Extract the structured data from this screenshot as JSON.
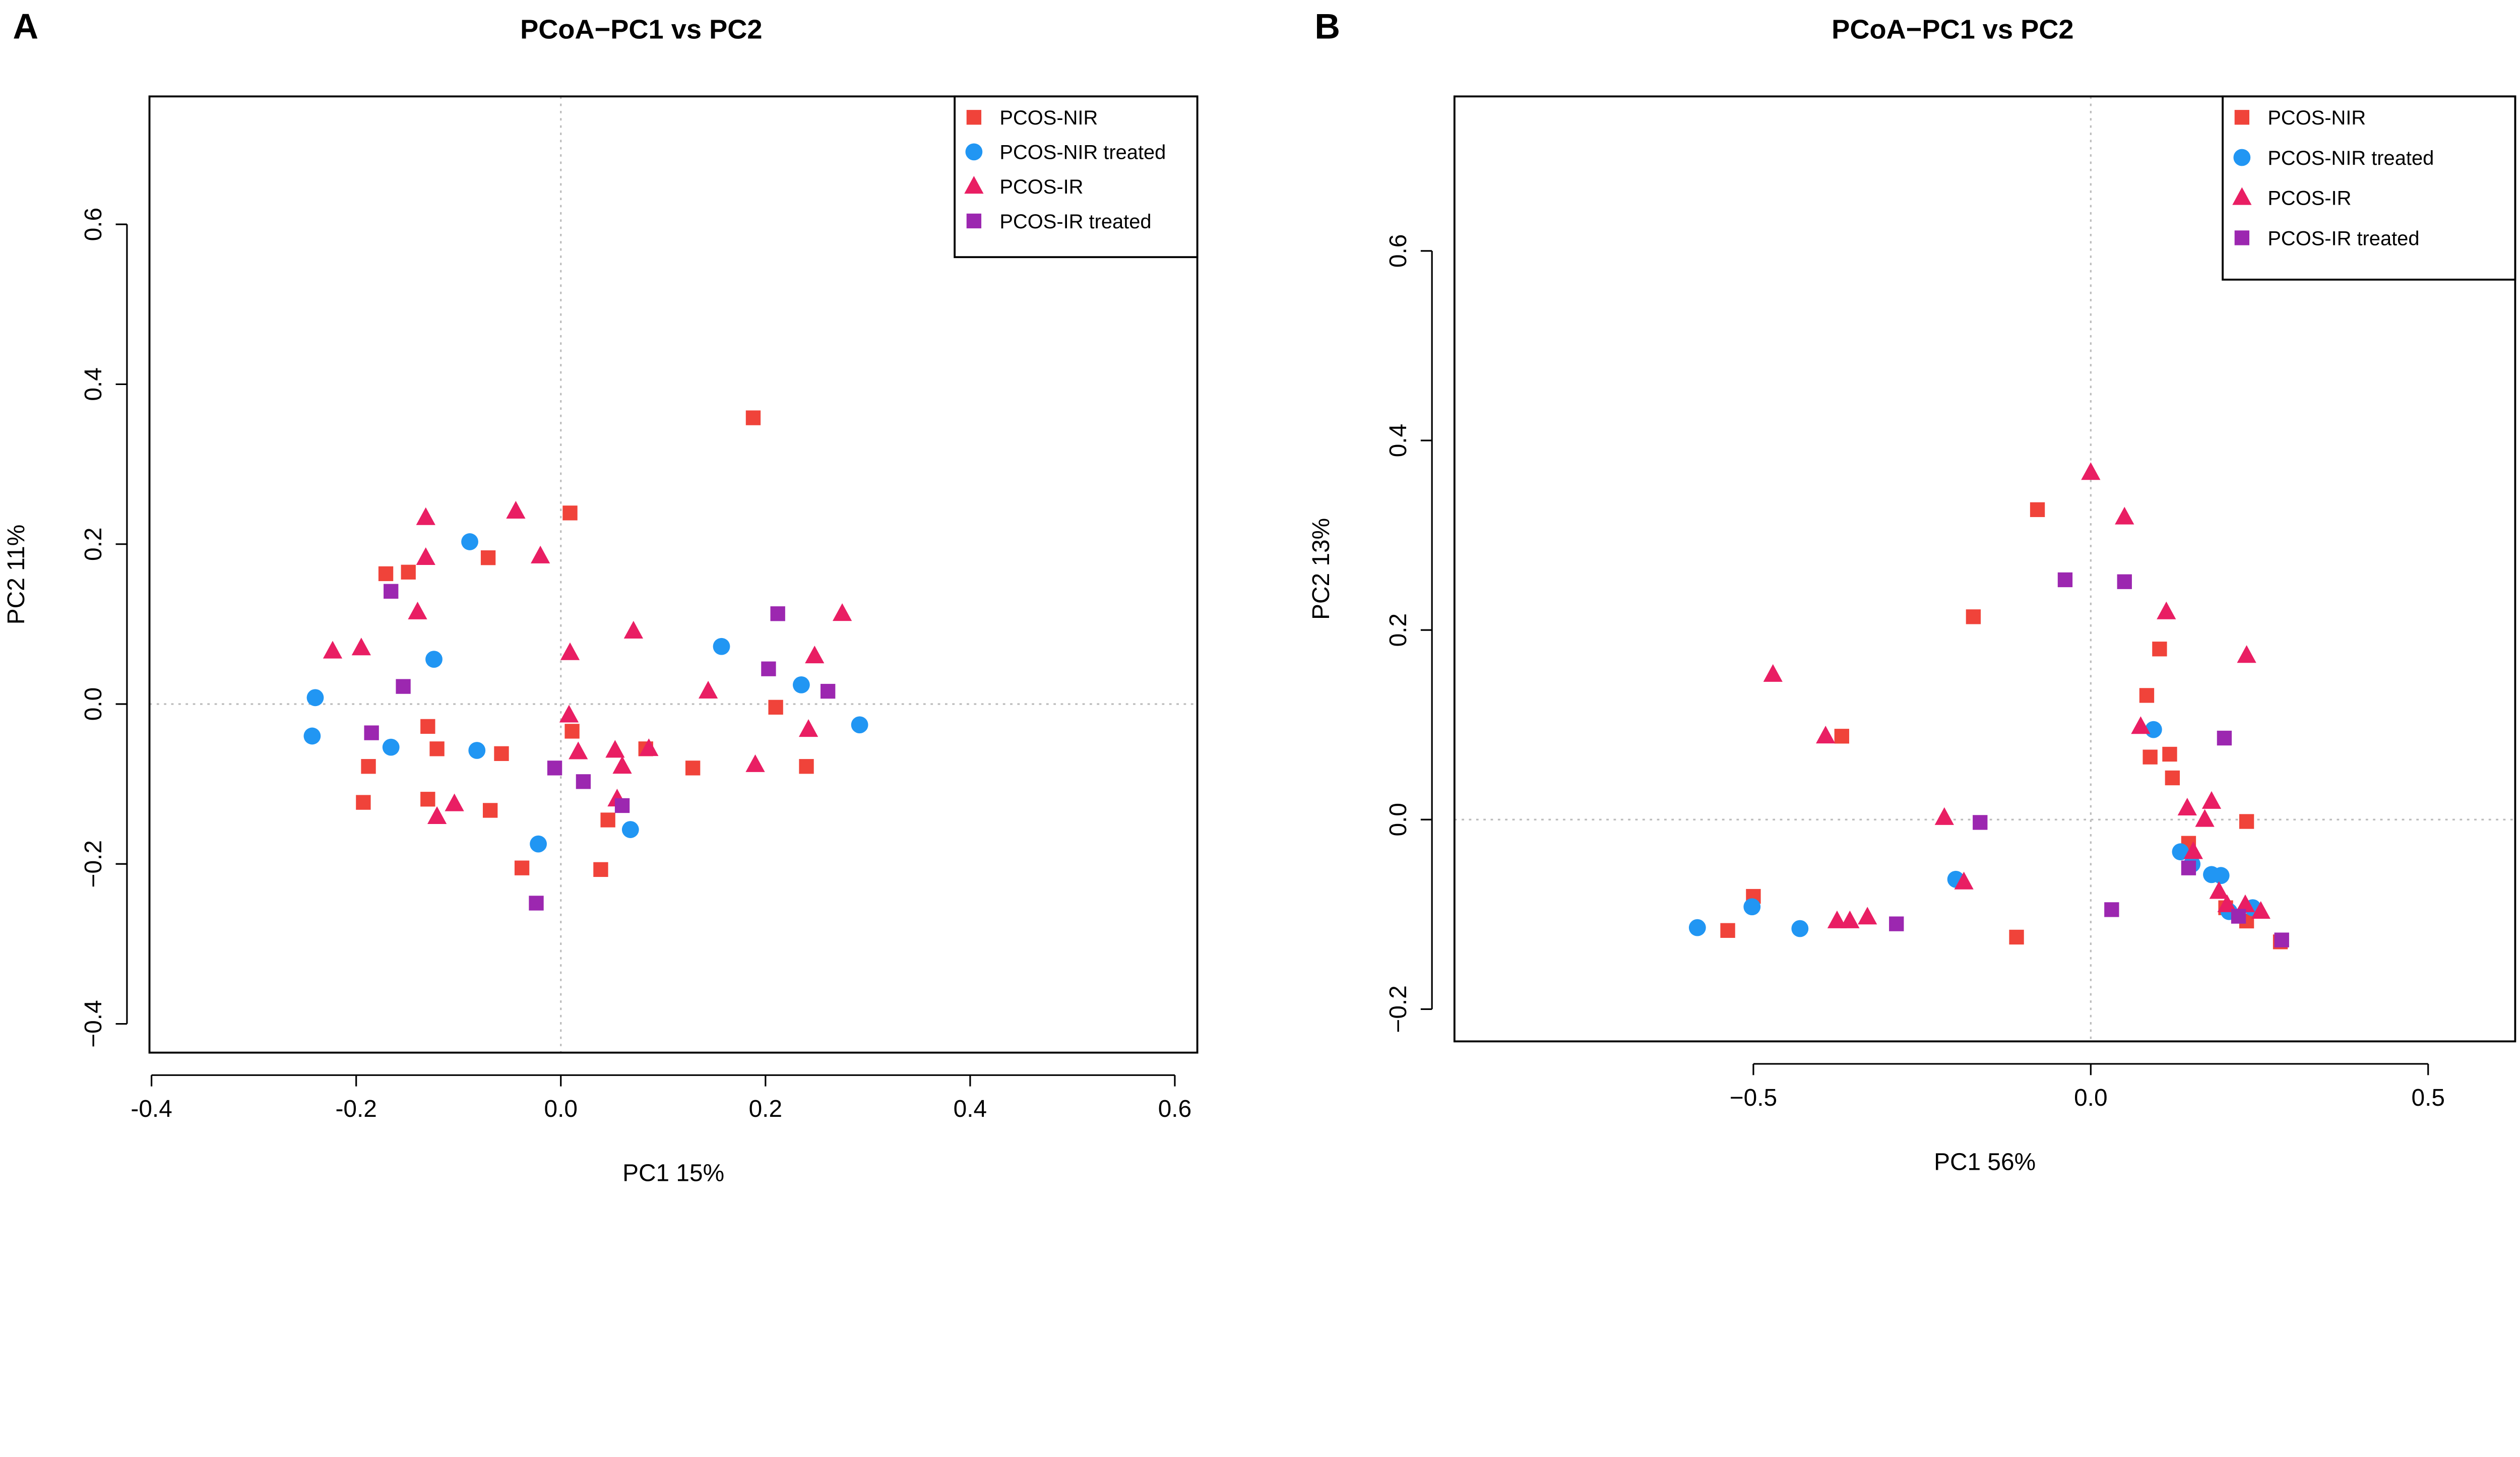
{
  "colors": {
    "PCOS-NIR": "#F0433A",
    "PCOS-NIR treated": "#2196F3",
    "PCOS-IR": "#E91E63",
    "PCOS-IR treated": "#9C27B0"
  },
  "chart_data": [
    {
      "panel": "A",
      "type": "scatter",
      "title": "PCoA−PC1 vs PC2",
      "xlabel": "PC1 15%",
      "ylabel": "PC2 11%",
      "xlim": [
        -0.402,
        0.622
      ],
      "ylim": [
        -0.436,
        0.76
      ],
      "xticks": [
        -0.4,
        -0.2,
        0.0,
        0.2,
        0.4,
        0.6
      ],
      "xtick_labels": [
        "-0.4",
        "-0.2",
        "0.0",
        "0.2",
        "0.4",
        "0.6"
      ],
      "yticks": [
        -0.4,
        -0.2,
        0.0,
        0.2,
        0.4,
        0.6
      ],
      "ytick_labels": [
        "−0.4",
        "−0.2",
        "0.0",
        "0.2",
        "0.4",
        "0.6"
      ],
      "legend_position": "top-right",
      "series": [
        {
          "name": "PCOS-NIR",
          "marker": "square",
          "points": [
            [
              0.009,
              0.239
            ],
            [
              0.188,
              0.358
            ],
            [
              -0.171,
              0.163
            ],
            [
              -0.149,
              0.165
            ],
            [
              -0.071,
              0.183
            ],
            [
              -0.13,
              -0.028
            ],
            [
              -0.121,
              -0.056
            ],
            [
              -0.188,
              -0.078
            ],
            [
              -0.193,
              -0.123
            ],
            [
              -0.13,
              -0.119
            ],
            [
              -0.058,
              -0.062
            ],
            [
              -0.069,
              -0.133
            ],
            [
              -0.038,
              -0.205
            ],
            [
              0.011,
              -0.034
            ],
            [
              0.046,
              -0.145
            ],
            [
              0.039,
              -0.207
            ],
            [
              0.083,
              -0.056
            ],
            [
              0.129,
              -0.08
            ],
            [
              0.21,
              -0.004
            ],
            [
              0.24,
              -0.078
            ]
          ]
        },
        {
          "name": "PCOS-NIR treated",
          "marker": "circle",
          "points": [
            [
              -0.24,
              0.008
            ],
            [
              -0.243,
              -0.04
            ],
            [
              -0.166,
              -0.054
            ],
            [
              -0.124,
              0.056
            ],
            [
              -0.089,
              0.203
            ],
            [
              -0.082,
              -0.058
            ],
            [
              -0.022,
              -0.175
            ],
            [
              0.068,
              -0.157
            ],
            [
              0.157,
              0.072
            ],
            [
              0.235,
              0.024
            ],
            [
              0.292,
              -0.026
            ]
          ]
        },
        {
          "name": "PCOS-IR",
          "marker": "triangle",
          "points": [
            [
              -0.223,
              0.066
            ],
            [
              -0.195,
              0.07
            ],
            [
              -0.132,
              0.233
            ],
            [
              -0.132,
              0.183
            ],
            [
              -0.14,
              0.115
            ],
            [
              -0.044,
              0.241
            ],
            [
              -0.02,
              0.185
            ],
            [
              -0.121,
              -0.141
            ],
            [
              -0.104,
              -0.125
            ],
            [
              0.008,
              -0.014
            ],
            [
              0.009,
              0.064
            ],
            [
              0.071,
              0.091
            ],
            [
              0.017,
              -0.06
            ],
            [
              0.06,
              -0.078
            ],
            [
              0.053,
              -0.058
            ],
            [
              0.086,
              -0.056
            ],
            [
              0.144,
              0.016
            ],
            [
              0.19,
              -0.076
            ],
            [
              0.248,
              0.06
            ],
            [
              0.242,
              -0.032
            ],
            [
              0.275,
              0.113
            ],
            [
              0.055,
              -0.119
            ]
          ]
        },
        {
          "name": "PCOS-IR treated",
          "marker": "square",
          "points": [
            [
              -0.166,
              0.141
            ],
            [
              -0.154,
              0.022
            ],
            [
              -0.185,
              -0.036
            ],
            [
              -0.006,
              -0.08
            ],
            [
              0.022,
              -0.097
            ],
            [
              0.06,
              -0.127
            ],
            [
              -0.024,
              -0.249
            ],
            [
              0.212,
              0.113
            ],
            [
              0.203,
              0.044
            ],
            [
              0.261,
              0.016
            ]
          ]
        }
      ]
    },
    {
      "panel": "B",
      "type": "scatter",
      "title": "PCoA−PC1 vs PC2",
      "xlabel": "PC1 56%",
      "ylabel": "PC2 13%",
      "xlim": [
        -0.943,
        0.629
      ],
      "ylim": [
        -0.234,
        0.763
      ],
      "xticks": [
        -0.5,
        0.0,
        0.5
      ],
      "xtick_labels": [
        "−0.5",
        "0.0",
        "0.5"
      ],
      "yticks": [
        -0.2,
        0.0,
        0.2,
        0.4,
        0.6
      ],
      "ytick_labels": [
        "−0.2",
        "0.0",
        "0.2",
        "0.4",
        "0.6"
      ],
      "legend_position": "top-right",
      "series": [
        {
          "name": "PCOS-NIR",
          "marker": "square",
          "points": [
            [
              -0.079,
              0.327
            ],
            [
              -0.174,
              0.214
            ],
            [
              -0.369,
              0.088
            ],
            [
              -0.5,
              -0.081
            ],
            [
              -0.538,
              -0.117
            ],
            [
              -0.11,
              -0.124
            ],
            [
              0.102,
              0.18
            ],
            [
              0.083,
              0.131
            ],
            [
              0.088,
              0.066
            ],
            [
              0.117,
              0.069
            ],
            [
              0.121,
              0.044
            ],
            [
              0.231,
              -0.002
            ],
            [
              0.145,
              -0.025
            ],
            [
              0.231,
              -0.107
            ],
            [
              0.2,
              -0.093
            ],
            [
              0.281,
              -0.129
            ]
          ]
        },
        {
          "name": "PCOS-NIR treated",
          "marker": "circle",
          "points": [
            [
              -0.583,
              -0.114
            ],
            [
              -0.502,
              -0.092
            ],
            [
              -0.431,
              -0.115
            ],
            [
              -0.2,
              -0.063
            ],
            [
              0.093,
              0.095
            ],
            [
              0.133,
              -0.034
            ],
            [
              0.179,
              -0.058
            ],
            [
              0.193,
              -0.059
            ],
            [
              0.205,
              -0.097
            ],
            [
              0.24,
              -0.093
            ],
            [
              0.15,
              -0.047
            ]
          ]
        },
        {
          "name": "PCOS-IR",
          "marker": "triangle",
          "points": [
            [
              0.0,
              0.366
            ],
            [
              0.05,
              0.319
            ],
            [
              0.112,
              0.219
            ],
            [
              0.231,
              0.173
            ],
            [
              0.074,
              0.098
            ],
            [
              -0.471,
              0.153
            ],
            [
              -0.393,
              0.088
            ],
            [
              -0.217,
              0.002
            ],
            [
              -0.188,
              -0.066
            ],
            [
              -0.376,
              -0.107
            ],
            [
              -0.357,
              -0.107
            ],
            [
              -0.331,
              -0.103
            ],
            [
              0.143,
              0.012
            ],
            [
              0.179,
              0.019
            ],
            [
              0.169,
              0.0
            ],
            [
              0.152,
              -0.034
            ],
            [
              0.19,
              -0.076
            ],
            [
              0.202,
              -0.09
            ],
            [
              0.229,
              -0.09
            ],
            [
              0.252,
              -0.097
            ]
          ]
        },
        {
          "name": "PCOS-IR treated",
          "marker": "square",
          "points": [
            [
              -0.038,
              0.253
            ],
            [
              0.05,
              0.251
            ],
            [
              0.198,
              0.086
            ],
            [
              -0.164,
              -0.003
            ],
            [
              -0.288,
              -0.11
            ],
            [
              0.031,
              -0.095
            ],
            [
              0.145,
              -0.051
            ],
            [
              0.219,
              -0.102
            ],
            [
              0.283,
              -0.127
            ]
          ]
        }
      ]
    }
  ]
}
